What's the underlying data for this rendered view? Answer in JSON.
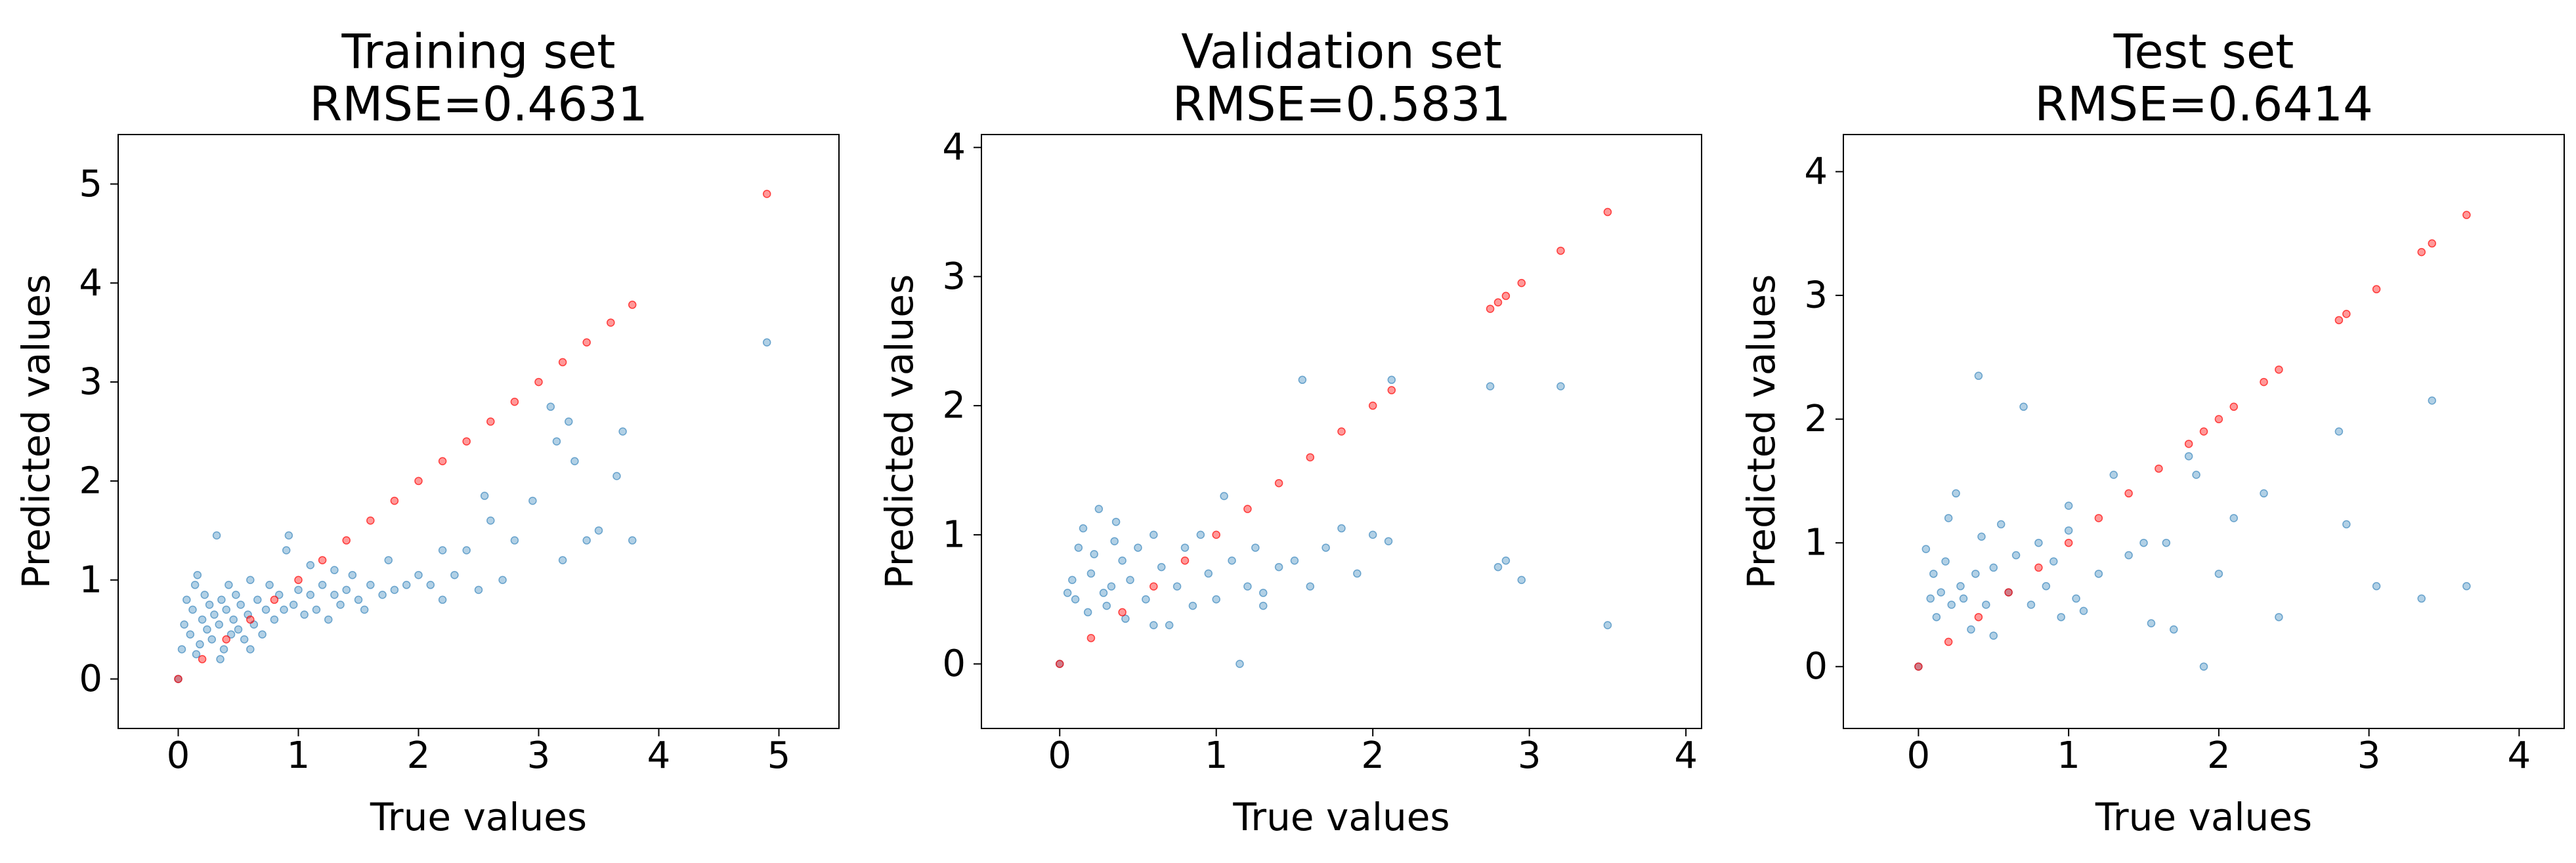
{
  "colors": {
    "predicted": "#1f77b4",
    "identity": "#ff0000",
    "axes": "#000000",
    "background": "#ffffff"
  },
  "chart_data": [
    {
      "type": "scatter",
      "title": "Training set",
      "subtitle": "RMSE=0.4631",
      "xlabel": "True values",
      "ylabel": "Predicted values",
      "xlim": [
        -0.5,
        5.5
      ],
      "ylim": [
        -0.5,
        5.5
      ],
      "xticks": [
        "0",
        "1",
        "2",
        "3",
        "4",
        "5"
      ],
      "yticks": [
        "0",
        "1",
        "2",
        "3",
        "4",
        "5"
      ],
      "grid": false,
      "series": [
        {
          "values": [
            [
              0,
              0
            ],
            [
              0.03,
              0.3
            ],
            [
              0.05,
              0.55
            ],
            [
              0.07,
              0.8
            ],
            [
              0.1,
              0.45
            ],
            [
              0.12,
              0.7
            ],
            [
              0.14,
              0.95
            ],
            [
              0.16,
              1.05
            ],
            [
              0.18,
              0.35
            ],
            [
              0.2,
              0.6
            ],
            [
              0.22,
              0.85
            ],
            [
              0.24,
              0.5
            ],
            [
              0.26,
              0.75
            ],
            [
              0.28,
              0.4
            ],
            [
              0.3,
              0.65
            ],
            [
              0.32,
              1.45
            ],
            [
              0.34,
              0.55
            ],
            [
              0.36,
              0.8
            ],
            [
              0.38,
              0.3
            ],
            [
              0.4,
              0.7
            ],
            [
              0.42,
              0.95
            ],
            [
              0.44,
              0.45
            ],
            [
              0.46,
              0.6
            ],
            [
              0.48,
              0.85
            ],
            [
              0.5,
              0.5
            ],
            [
              0.52,
              0.75
            ],
            [
              0.55,
              0.4
            ],
            [
              0.58,
              0.65
            ],
            [
              0.6,
              1.0
            ],
            [
              0.63,
              0.55
            ],
            [
              0.66,
              0.8
            ],
            [
              0.7,
              0.45
            ],
            [
              0.73,
              0.7
            ],
            [
              0.76,
              0.95
            ],
            [
              0.8,
              0.6
            ],
            [
              0.84,
              0.85
            ],
            [
              0.88,
              0.7
            ],
            [
              0.92,
              1.45
            ],
            [
              0.96,
              0.75
            ],
            [
              1.0,
              0.9
            ],
            [
              1.05,
              0.65
            ],
            [
              1.1,
              0.85
            ],
            [
              1.15,
              0.7
            ],
            [
              1.2,
              0.95
            ],
            [
              1.25,
              0.6
            ],
            [
              1.3,
              0.85
            ],
            [
              1.35,
              0.75
            ],
            [
              1.4,
              0.9
            ],
            [
              1.45,
              1.05
            ],
            [
              1.5,
              0.8
            ],
            [
              1.55,
              0.7
            ],
            [
              1.6,
              0.95
            ],
            [
              1.7,
              0.85
            ],
            [
              1.8,
              0.9
            ],
            [
              1.9,
              0.95
            ],
            [
              2.0,
              1.05
            ],
            [
              2.1,
              0.95
            ],
            [
              2.2,
              0.8
            ],
            [
              2.3,
              1.05
            ],
            [
              2.4,
              1.3
            ],
            [
              2.5,
              0.9
            ],
            [
              2.55,
              1.85
            ],
            [
              2.6,
              1.6
            ],
            [
              2.7,
              1.0
            ],
            [
              2.8,
              1.4
            ],
            [
              2.95,
              1.8
            ],
            [
              3.1,
              2.75
            ],
            [
              3.15,
              2.4
            ],
            [
              3.25,
              2.6
            ],
            [
              3.3,
              2.2
            ],
            [
              3.4,
              1.4
            ],
            [
              3.5,
              1.5
            ],
            [
              3.65,
              2.05
            ],
            [
              3.7,
              2.5
            ],
            [
              3.78,
              1.4
            ],
            [
              3.2,
              1.2
            ],
            [
              2.2,
              1.3
            ],
            [
              4.9,
              3.4
            ],
            [
              1.1,
              1.15
            ],
            [
              0.15,
              0.25
            ],
            [
              0.35,
              0.2
            ],
            [
              0.9,
              1.3
            ],
            [
              1.3,
              1.1
            ],
            [
              0.6,
              0.3
            ],
            [
              1.75,
              1.2
            ]
          ]
        },
        {
          "values": [
            [
              0,
              0
            ],
            [
              0.2,
              0.2
            ],
            [
              0.4,
              0.4
            ],
            [
              0.6,
              0.6
            ],
            [
              0.8,
              0.8
            ],
            [
              1.0,
              1.0
            ],
            [
              1.2,
              1.2
            ],
            [
              1.4,
              1.4
            ],
            [
              1.6,
              1.6
            ],
            [
              1.8,
              1.8
            ],
            [
              2.0,
              2.0
            ],
            [
              2.2,
              2.2
            ],
            [
              2.4,
              2.4
            ],
            [
              2.6,
              2.6
            ],
            [
              2.8,
              2.8
            ],
            [
              3.0,
              3.0
            ],
            [
              3.2,
              3.2
            ],
            [
              3.4,
              3.4
            ],
            [
              3.6,
              3.6
            ],
            [
              3.78,
              3.78
            ],
            [
              4.9,
              4.9
            ]
          ]
        }
      ]
    },
    {
      "type": "scatter",
      "title": "Validation set",
      "subtitle": "RMSE=0.5831",
      "xlabel": "True values",
      "ylabel": "Predicted values",
      "xlim": [
        -0.5,
        4.1
      ],
      "ylim": [
        -0.5,
        4.1
      ],
      "xticks": [
        "0",
        "1",
        "2",
        "3",
        "4"
      ],
      "yticks": [
        "0",
        "1",
        "2",
        "3",
        "4"
      ],
      "grid": false,
      "series": [
        {
          "values": [
            [
              0,
              0
            ],
            [
              0.05,
              0.55
            ],
            [
              0.08,
              0.65
            ],
            [
              0.1,
              0.5
            ],
            [
              0.12,
              0.9
            ],
            [
              0.15,
              1.05
            ],
            [
              0.18,
              0.4
            ],
            [
              0.2,
              0.7
            ],
            [
              0.22,
              0.85
            ],
            [
              0.25,
              1.2
            ],
            [
              0.28,
              0.55
            ],
            [
              0.3,
              0.45
            ],
            [
              0.33,
              0.6
            ],
            [
              0.36,
              1.1
            ],
            [
              0.4,
              0.8
            ],
            [
              0.42,
              0.35
            ],
            [
              0.45,
              0.65
            ],
            [
              0.5,
              0.9
            ],
            [
              0.55,
              0.5
            ],
            [
              0.6,
              1.0
            ],
            [
              0.65,
              0.75
            ],
            [
              0.7,
              0.3
            ],
            [
              0.75,
              0.6
            ],
            [
              0.8,
              0.9
            ],
            [
              0.85,
              0.45
            ],
            [
              0.9,
              1.0
            ],
            [
              0.95,
              0.7
            ],
            [
              1.0,
              0.5
            ],
            [
              1.05,
              1.3
            ],
            [
              1.1,
              0.8
            ],
            [
              1.15,
              0.0
            ],
            [
              1.2,
              0.6
            ],
            [
              1.25,
              0.9
            ],
            [
              1.3,
              0.55
            ],
            [
              1.4,
              0.75
            ],
            [
              1.5,
              0.8
            ],
            [
              1.55,
              2.2
            ],
            [
              1.6,
              0.6
            ],
            [
              1.7,
              0.9
            ],
            [
              1.8,
              1.05
            ],
            [
              1.9,
              0.7
            ],
            [
              2.0,
              1.0
            ],
            [
              2.1,
              0.95
            ],
            [
              2.12,
              2.2
            ],
            [
              2.75,
              2.15
            ],
            [
              2.8,
              0.75
            ],
            [
              2.85,
              0.8
            ],
            [
              2.95,
              0.65
            ],
            [
              3.2,
              2.15
            ],
            [
              3.5,
              0.3
            ],
            [
              0.6,
              0.3
            ],
            [
              1.3,
              0.45
            ],
            [
              0.35,
              0.95
            ]
          ]
        },
        {
          "values": [
            [
              0,
              0
            ],
            [
              0.2,
              0.2
            ],
            [
              0.4,
              0.4
            ],
            [
              0.6,
              0.6
            ],
            [
              0.8,
              0.8
            ],
            [
              1.0,
              1.0
            ],
            [
              1.2,
              1.2
            ],
            [
              1.4,
              1.4
            ],
            [
              1.6,
              1.6
            ],
            [
              1.8,
              1.8
            ],
            [
              2.0,
              2.0
            ],
            [
              2.12,
              2.12
            ],
            [
              2.75,
              2.75
            ],
            [
              2.8,
              2.8
            ],
            [
              2.85,
              2.85
            ],
            [
              2.95,
              2.95
            ],
            [
              3.2,
              3.2
            ],
            [
              3.5,
              3.5
            ]
          ]
        }
      ]
    },
    {
      "type": "scatter",
      "title": "Test set",
      "subtitle": "RMSE=0.6414",
      "xlabel": "True values",
      "ylabel": "Predicted values",
      "xlim": [
        -0.5,
        4.3
      ],
      "ylim": [
        -0.5,
        4.3
      ],
      "xticks": [
        "0",
        "1",
        "2",
        "3",
        "4"
      ],
      "yticks": [
        "0",
        "1",
        "2",
        "3",
        "4"
      ],
      "grid": false,
      "series": [
        {
          "values": [
            [
              0,
              0
            ],
            [
              0.05,
              0.95
            ],
            [
              0.08,
              0.55
            ],
            [
              0.1,
              0.75
            ],
            [
              0.12,
              0.4
            ],
            [
              0.15,
              0.6
            ],
            [
              0.18,
              0.85
            ],
            [
              0.2,
              1.2
            ],
            [
              0.22,
              0.5
            ],
            [
              0.25,
              1.4
            ],
            [
              0.28,
              0.65
            ],
            [
              0.3,
              0.55
            ],
            [
              0.35,
              0.3
            ],
            [
              0.38,
              0.75
            ],
            [
              0.4,
              2.35
            ],
            [
              0.42,
              1.05
            ],
            [
              0.45,
              0.5
            ],
            [
              0.5,
              0.8
            ],
            [
              0.55,
              1.15
            ],
            [
              0.6,
              0.6
            ],
            [
              0.65,
              0.9
            ],
            [
              0.7,
              2.1
            ],
            [
              0.75,
              0.5
            ],
            [
              0.8,
              1.0
            ],
            [
              0.85,
              0.65
            ],
            [
              0.9,
              0.85
            ],
            [
              0.95,
              0.4
            ],
            [
              1.0,
              1.1
            ],
            [
              1.05,
              0.55
            ],
            [
              1.1,
              0.45
            ],
            [
              1.2,
              0.75
            ],
            [
              1.3,
              1.55
            ],
            [
              1.4,
              0.9
            ],
            [
              1.5,
              1.0
            ],
            [
              1.55,
              0.35
            ],
            [
              1.65,
              1.0
            ],
            [
              1.7,
              0.3
            ],
            [
              1.8,
              1.7
            ],
            [
              1.85,
              1.55
            ],
            [
              1.9,
              0.0
            ],
            [
              2.0,
              0.75
            ],
            [
              2.1,
              1.2
            ],
            [
              2.3,
              1.4
            ],
            [
              2.4,
              0.4
            ],
            [
              2.8,
              1.9
            ],
            [
              2.85,
              1.15
            ],
            [
              3.05,
              0.65
            ],
            [
              3.35,
              0.55
            ],
            [
              3.42,
              2.15
            ],
            [
              3.65,
              0.65
            ],
            [
              0.5,
              0.25
            ],
            [
              1.0,
              1.3
            ]
          ]
        },
        {
          "values": [
            [
              0,
              0
            ],
            [
              0.2,
              0.2
            ],
            [
              0.4,
              0.4
            ],
            [
              0.6,
              0.6
            ],
            [
              0.8,
              0.8
            ],
            [
              1.0,
              1.0
            ],
            [
              1.2,
              1.2
            ],
            [
              1.4,
              1.4
            ],
            [
              1.6,
              1.6
            ],
            [
              1.8,
              1.8
            ],
            [
              1.9,
              1.9
            ],
            [
              2.0,
              2.0
            ],
            [
              2.1,
              2.1
            ],
            [
              2.3,
              2.3
            ],
            [
              2.4,
              2.4
            ],
            [
              2.8,
              2.8
            ],
            [
              2.85,
              2.85
            ],
            [
              3.05,
              3.05
            ],
            [
              3.35,
              3.35
            ],
            [
              3.42,
              3.42
            ],
            [
              3.65,
              3.65
            ]
          ]
        }
      ]
    }
  ]
}
